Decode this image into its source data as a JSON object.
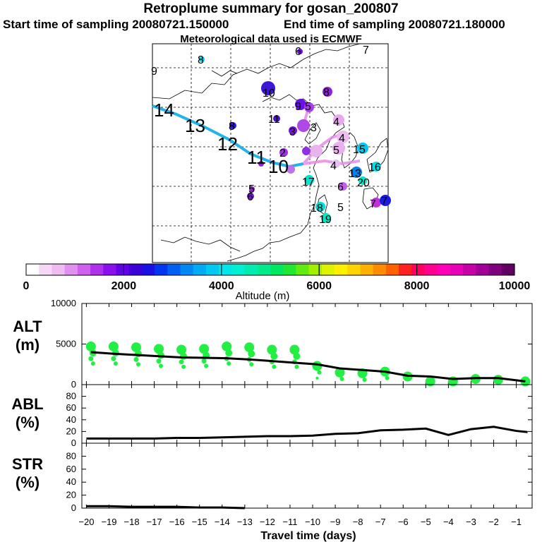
{
  "header": {
    "title": "Retroplume summary for gosan_200807",
    "start": "Start time of sampling 20080721.150000",
    "end": "End time of sampling 20080721.180000",
    "met": "Meteorological data used is ECMWF"
  },
  "colorbar": {
    "label": "Altitude (m)",
    "ticks": [
      "0",
      "2000",
      "4000",
      "6000",
      "8000",
      "10000"
    ],
    "colors": [
      "#ffffff",
      "#f6d8f6",
      "#eebcf0",
      "#e090ee",
      "#d060ee",
      "#b030ee",
      "#8a10ee",
      "#6400e6",
      "#3c00d8",
      "#1a10e6",
      "#0036f0",
      "#0060f4",
      "#0088f4",
      "#00aaf4",
      "#00c8f0",
      "#00e6ec",
      "#00f0d2",
      "#00ecb0",
      "#00ea8a",
      "#00e860",
      "#20e830",
      "#60ec10",
      "#a0f000",
      "#dcf400",
      "#fff000",
      "#ffd400",
      "#ffb000",
      "#ff8c00",
      "#ff6000",
      "#ff2020",
      "#ff0060",
      "#ff0090",
      "#ff00b8",
      "#e800b8",
      "#c800a8",
      "#a00098",
      "#800080",
      "#600060"
    ]
  },
  "map": {
    "track_labels": [
      {
        "text": "14",
        "big": true
      },
      {
        "text": "13",
        "big": true
      },
      {
        "text": "12",
        "big": true
      },
      {
        "text": "11",
        "big": true
      },
      {
        "text": "10",
        "big": true
      },
      {
        "text": "9",
        "big": false
      },
      {
        "text": "8",
        "big": false
      },
      {
        "text": "7",
        "big": false
      },
      {
        "text": "6",
        "big": false
      },
      {
        "text": "10",
        "big": false
      },
      {
        "text": "11",
        "big": false
      },
      {
        "text": "9",
        "big": false
      },
      {
        "text": "8",
        "big": false
      },
      {
        "text": "5",
        "big": false
      },
      {
        "text": "4",
        "big": false
      },
      {
        "text": "3",
        "big": false
      },
      {
        "text": "4",
        "big": false
      },
      {
        "text": "5",
        "big": false
      },
      {
        "text": "4",
        "big": false
      },
      {
        "text": "15",
        "big": false
      },
      {
        "text": "16",
        "big": false
      },
      {
        "text": "13",
        "big": false
      },
      {
        "text": "20",
        "big": false
      },
      {
        "text": "6",
        "big": false
      },
      {
        "text": "17",
        "big": false
      },
      {
        "text": "18",
        "big": false
      },
      {
        "text": "19",
        "big": false
      },
      {
        "text": "5",
        "big": false
      },
      {
        "text": "7",
        "big": false
      },
      {
        "text": "6",
        "big": false
      },
      {
        "text": "5",
        "big": false
      },
      {
        "text": "7",
        "big": false
      },
      {
        "text": "8",
        "big": false
      },
      {
        "text": "3",
        "big": false
      },
      {
        "text": "2",
        "big": false
      }
    ]
  },
  "panels": [
    {
      "label": "ALT",
      "unit": "(m)",
      "yticks": [
        "10000",
        "5000",
        "0"
      ]
    },
    {
      "label": "ABL",
      "unit": "(%)",
      "yticks": [
        "80",
        "60",
        "40",
        "20",
        "0"
      ]
    },
    {
      "label": "STR",
      "unit": "(%)",
      "yticks": [
        "80",
        "60",
        "40",
        "20",
        "0"
      ]
    }
  ],
  "chart_data": {
    "type": "line",
    "title": "Retroplume summary for gosan_200807",
    "xlabel": "Travel time (days)",
    "xlim": [
      -20,
      -0.5
    ],
    "xticks": [
      -20,
      -19,
      -18,
      -17,
      -16,
      -15,
      -14,
      -13,
      -12,
      -11,
      -10,
      -9,
      -8,
      -7,
      -6,
      -5,
      -4,
      -3,
      -2,
      -1
    ],
    "xtick_labels": [
      "−20",
      "−19",
      "−18",
      "−17",
      "−16",
      "−15",
      "−14",
      "−13",
      "−12",
      "−11",
      "−10",
      "−9",
      "−8",
      "−7",
      "−6",
      "−5",
      "−4",
      "−3",
      "−2",
      "−1"
    ],
    "alt": {
      "ylabel": "ALT (m)",
      "ylim": [
        0,
        10000
      ],
      "mean_x": [
        -19.8,
        -18.8,
        -17.8,
        -16.8,
        -15.8,
        -14.8,
        -13.8,
        -12.8,
        -11.8,
        -10.8,
        -9.8,
        -8.8,
        -7.8,
        -6.8,
        -5.8,
        -4.8,
        -3.8,
        -2.8,
        -1.8,
        -0.6
      ],
      "mean_y": [
        4000,
        3800,
        3650,
        3500,
        3350,
        3300,
        3250,
        3100,
        2900,
        2700,
        2500,
        2000,
        1800,
        1600,
        1100,
        1000,
        700,
        800,
        800,
        400
      ],
      "cluster_x": [
        -19.8,
        -18.8,
        -17.8,
        -16.8,
        -15.8,
        -14.8,
        -13.8,
        -12.8,
        -11.8,
        -10.8,
        -9.8,
        -8.8,
        -7.8,
        -6.8,
        -5.8,
        -4.8,
        -3.8,
        -2.8,
        -1.8,
        -0.6
      ],
      "cluster_y": [
        4700,
        4700,
        4600,
        4400,
        4300,
        4400,
        4700,
        4600,
        4300,
        4300,
        2300,
        1500,
        1400,
        1600,
        1000,
        400,
        400,
        700,
        600,
        400
      ]
    },
    "series": [
      {
        "name": "ABL (%)",
        "ylim": [
          0,
          100
        ],
        "x": [
          -20,
          -19,
          -18,
          -17,
          -16,
          -15,
          -14,
          -13,
          -12,
          -11,
          -10,
          -9,
          -8,
          -7,
          -6,
          -5,
          -4,
          -3,
          -2,
          -1,
          -0.5
        ],
        "values": [
          8,
          8,
          8,
          8,
          9,
          9,
          10,
          11,
          12,
          12,
          13,
          16,
          17,
          22,
          23,
          25,
          14,
          24,
          28,
          21,
          19
        ]
      },
      {
        "name": "STR (%)",
        "ylim": [
          0,
          100
        ],
        "x": [
          -20,
          -19,
          -18,
          -17,
          -16,
          -15,
          -14,
          -13
        ],
        "values": [
          3,
          3,
          2,
          2,
          2,
          1,
          1,
          0
        ]
      }
    ]
  }
}
